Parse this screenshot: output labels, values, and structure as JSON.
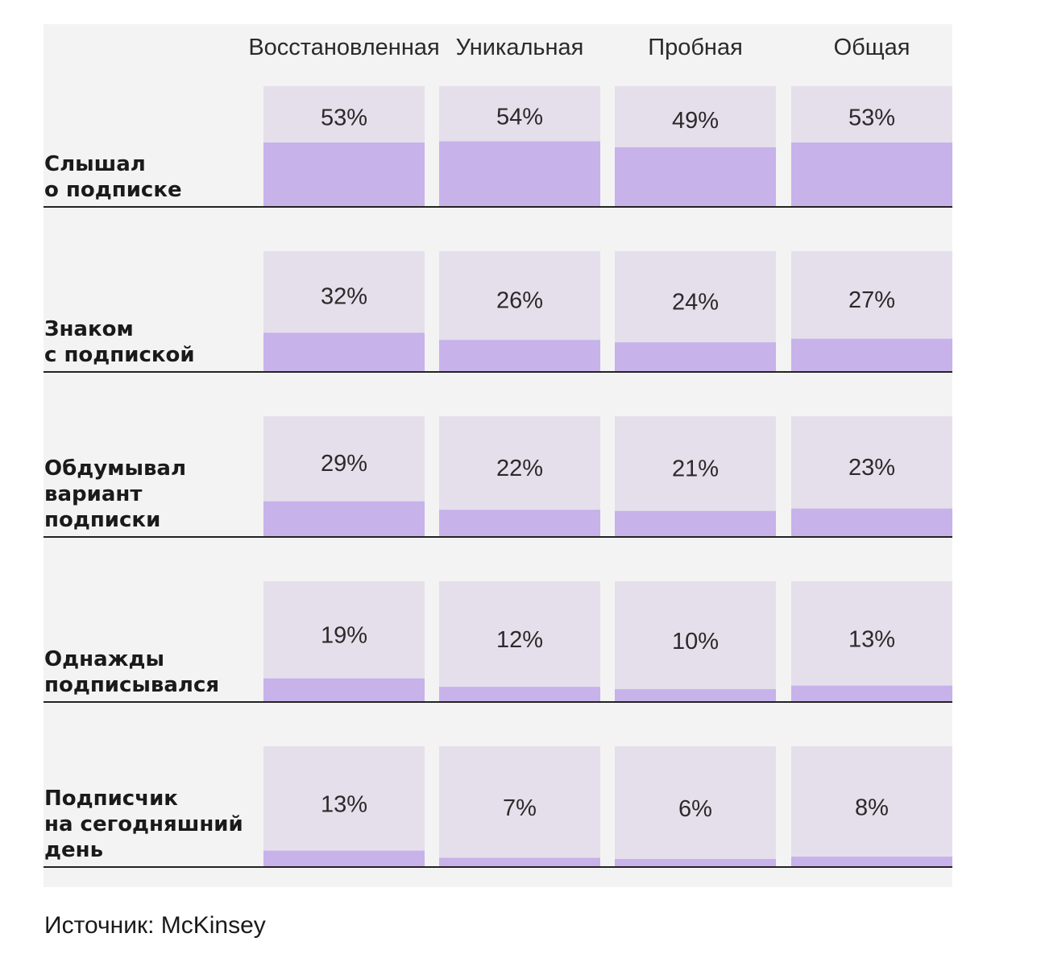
{
  "chart_data": {
    "type": "bar",
    "categories": [
      "Восстановленная",
      "Уникальная",
      "Пробная",
      "Общая"
    ],
    "rows": [
      {
        "label_lines": [
          "Слышал",
          "о подписке"
        ],
        "values": [
          53,
          54,
          49,
          53
        ],
        "value_labels": [
          "53%",
          "54%",
          "49%",
          "53%"
        ]
      },
      {
        "label_lines": [
          "Знаком",
          "с подпиской"
        ],
        "values": [
          32,
          26,
          24,
          27
        ],
        "value_labels": [
          "32%",
          "26%",
          "24%",
          "27%"
        ]
      },
      {
        "label_lines": [
          "Обдумывал",
          "вариант",
          "подписки"
        ],
        "values": [
          29,
          22,
          21,
          23
        ],
        "value_labels": [
          "29%",
          "22%",
          "21%",
          "23%"
        ]
      },
      {
        "label_lines": [
          "Однажды",
          "подписывался"
        ],
        "values": [
          19,
          12,
          10,
          13
        ],
        "value_labels": [
          "19%",
          "12%",
          "10%",
          "13%"
        ]
      },
      {
        "label_lines": [
          "Подписчик",
          "на сегодняшний",
          "день"
        ],
        "values": [
          13,
          7,
          6,
          8
        ],
        "value_labels": [
          "13%",
          "7%",
          "6%",
          "8%"
        ]
      }
    ],
    "value_unit": "%",
    "grid": false,
    "legend": "none"
  },
  "colors": {
    "panel_background": "#f3f3f3",
    "cell_background": "#e5dfeb",
    "bar_fill": "#c7b2ea",
    "baseline": "#222222",
    "text": "#2a2a2a"
  },
  "source": "Источник: McKinsey"
}
